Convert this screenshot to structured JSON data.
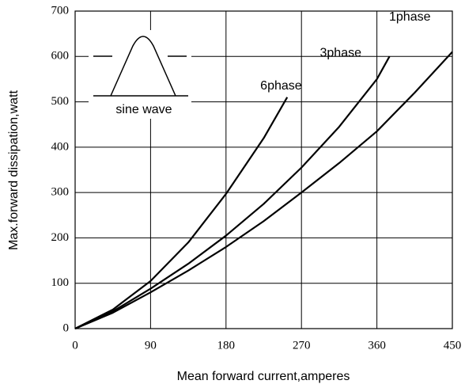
{
  "chart_data": {
    "type": "line",
    "xlabel": "Mean forward current,amperes",
    "ylabel": "Max.forward dissipation,watt",
    "annotation": "sine wave",
    "series": [
      {
        "name": "1phase",
        "color": "#000000",
        "x": [
          0,
          45,
          90,
          135,
          180,
          225,
          270,
          315,
          360,
          405,
          450
        ],
        "values": [
          0,
          35,
          80,
          128,
          180,
          237,
          300,
          365,
          435,
          520,
          610
        ]
      },
      {
        "name": "3phase",
        "color": "#000000",
        "x": [
          0,
          45,
          90,
          135,
          180,
          225,
          270,
          315,
          360,
          375
        ],
        "values": [
          0,
          38,
          88,
          143,
          205,
          275,
          355,
          445,
          550,
          600
        ]
      },
      {
        "name": "6phase",
        "color": "#000000",
        "x": [
          0,
          45,
          90,
          135,
          180,
          225,
          253
        ],
        "values": [
          0,
          42,
          105,
          190,
          297,
          420,
          510
        ]
      }
    ],
    "xlim": [
      0,
      450
    ],
    "xticks": [
      0,
      90,
      180,
      270,
      360,
      450
    ],
    "ylim": [
      0,
      700
    ],
    "yticks": [
      0,
      100,
      200,
      300,
      400,
      500,
      600,
      700
    ],
    "grid": true
  }
}
